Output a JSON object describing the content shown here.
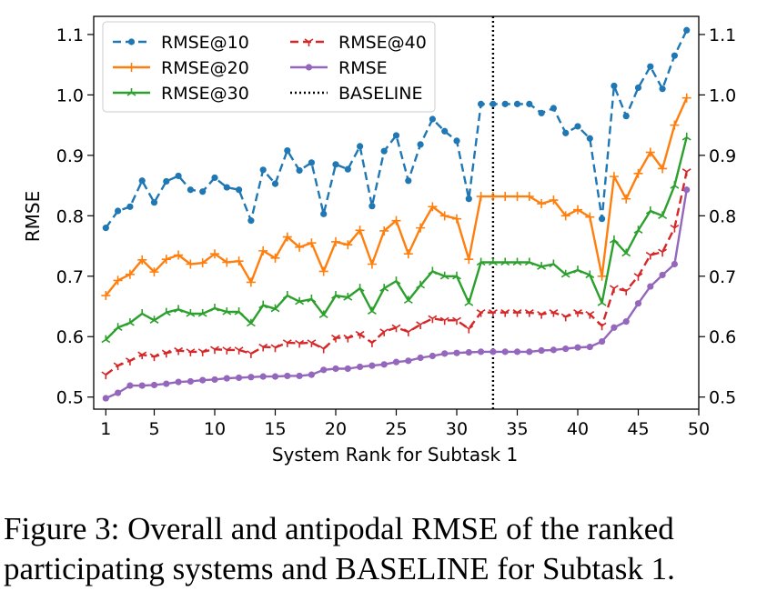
{
  "caption": {
    "line1": "Figure 3: Overall and antipodal RMSE of the ranked",
    "line2": "participating systems and BASELINE for Subtask 1."
  },
  "chart_data": {
    "type": "line",
    "title": "",
    "xlabel": "System Rank for Subtask 1",
    "ylabel": "RMSE",
    "xlim": [
      0,
      50
    ],
    "ylim": [
      0.48,
      1.13
    ],
    "xticks": [
      1,
      5,
      10,
      15,
      20,
      25,
      30,
      35,
      40,
      45,
      50
    ],
    "yticks": [
      0.5,
      0.6,
      0.7,
      0.8,
      0.9,
      1.0,
      1.1
    ],
    "ytick_labels": [
      "0.5",
      "0.6",
      "0.7",
      "0.8",
      "0.9",
      "1.0",
      "1.1"
    ],
    "right_axis_ticks": true,
    "grid": false,
    "legend_position": "top-left",
    "baseline": {
      "name": "BASELINE",
      "x": 33,
      "color": "#000000",
      "style": "dotted"
    },
    "x": [
      1,
      2,
      3,
      4,
      5,
      6,
      7,
      8,
      9,
      10,
      11,
      12,
      13,
      14,
      15,
      16,
      17,
      18,
      19,
      20,
      21,
      22,
      23,
      24,
      25,
      26,
      27,
      28,
      29,
      30,
      31,
      32,
      33,
      34,
      35,
      36,
      37,
      38,
      39,
      40,
      41,
      42,
      43,
      44,
      45,
      46,
      47,
      48,
      49
    ],
    "series": [
      {
        "name": "RMSE@10",
        "color": "#1f77b4",
        "style": "dashed",
        "marker": "dot",
        "values": [
          0.78,
          0.808,
          0.815,
          0.858,
          0.822,
          0.857,
          0.866,
          0.843,
          0.84,
          0.863,
          0.847,
          0.843,
          0.792,
          0.876,
          0.853,
          0.908,
          0.875,
          0.888,
          0.803,
          0.885,
          0.877,
          0.915,
          0.816,
          0.907,
          0.933,
          0.858,
          0.918,
          0.96,
          0.94,
          0.924,
          0.828,
          0.985,
          0.985,
          0.985,
          0.985,
          0.985,
          0.97,
          0.978,
          0.937,
          0.948,
          0.928,
          0.795,
          1.015,
          0.965,
          1.012,
          1.047,
          1.01,
          1.065,
          1.107
        ]
      },
      {
        "name": "RMSE@20",
        "color": "#ff7f0e",
        "style": "solid",
        "marker": "plus",
        "values": [
          0.668,
          0.693,
          0.703,
          0.727,
          0.707,
          0.728,
          0.735,
          0.72,
          0.722,
          0.737,
          0.723,
          0.725,
          0.69,
          0.742,
          0.73,
          0.765,
          0.748,
          0.755,
          0.708,
          0.757,
          0.752,
          0.776,
          0.72,
          0.775,
          0.792,
          0.737,
          0.78,
          0.815,
          0.8,
          0.795,
          0.728,
          0.832,
          0.832,
          0.832,
          0.832,
          0.832,
          0.82,
          0.826,
          0.8,
          0.81,
          0.798,
          0.7,
          0.865,
          0.828,
          0.87,
          0.905,
          0.878,
          0.95,
          0.995
        ]
      },
      {
        "name": "RMSE@30",
        "color": "#2ca02c",
        "style": "solid",
        "marker": "tri",
        "values": [
          0.595,
          0.615,
          0.623,
          0.638,
          0.627,
          0.64,
          0.645,
          0.638,
          0.638,
          0.647,
          0.641,
          0.641,
          0.622,
          0.652,
          0.646,
          0.668,
          0.658,
          0.662,
          0.636,
          0.668,
          0.665,
          0.68,
          0.642,
          0.68,
          0.692,
          0.66,
          0.685,
          0.708,
          0.7,
          0.7,
          0.656,
          0.723,
          0.723,
          0.723,
          0.723,
          0.723,
          0.716,
          0.72,
          0.703,
          0.71,
          0.702,
          0.656,
          0.76,
          0.738,
          0.776,
          0.808,
          0.8,
          0.85,
          0.93
        ]
      },
      {
        "name": "RMSE@40",
        "color": "#d62728",
        "style": "dashed",
        "marker": "tri-down",
        "values": [
          0.537,
          0.552,
          0.56,
          0.57,
          0.567,
          0.573,
          0.577,
          0.575,
          0.575,
          0.579,
          0.578,
          0.578,
          0.572,
          0.583,
          0.582,
          0.59,
          0.589,
          0.59,
          0.58,
          0.598,
          0.598,
          0.604,
          0.59,
          0.608,
          0.615,
          0.608,
          0.62,
          0.63,
          0.627,
          0.627,
          0.613,
          0.64,
          0.64,
          0.64,
          0.64,
          0.64,
          0.637,
          0.64,
          0.633,
          0.64,
          0.637,
          0.618,
          0.68,
          0.676,
          0.7,
          0.735,
          0.74,
          0.78,
          0.873
        ]
      },
      {
        "name": "RMSE",
        "color": "#9467bd",
        "style": "solid",
        "marker": "dot",
        "values": [
          0.498,
          0.507,
          0.519,
          0.519,
          0.52,
          0.522,
          0.525,
          0.526,
          0.528,
          0.529,
          0.531,
          0.532,
          0.533,
          0.534,
          0.534,
          0.535,
          0.535,
          0.537,
          0.545,
          0.547,
          0.547,
          0.55,
          0.552,
          0.554,
          0.558,
          0.56,
          0.565,
          0.568,
          0.572,
          0.573,
          0.574,
          0.575,
          0.575,
          0.575,
          0.575,
          0.575,
          0.577,
          0.578,
          0.58,
          0.582,
          0.583,
          0.592,
          0.615,
          0.625,
          0.655,
          0.683,
          0.702,
          0.72,
          0.843
        ]
      }
    ]
  }
}
